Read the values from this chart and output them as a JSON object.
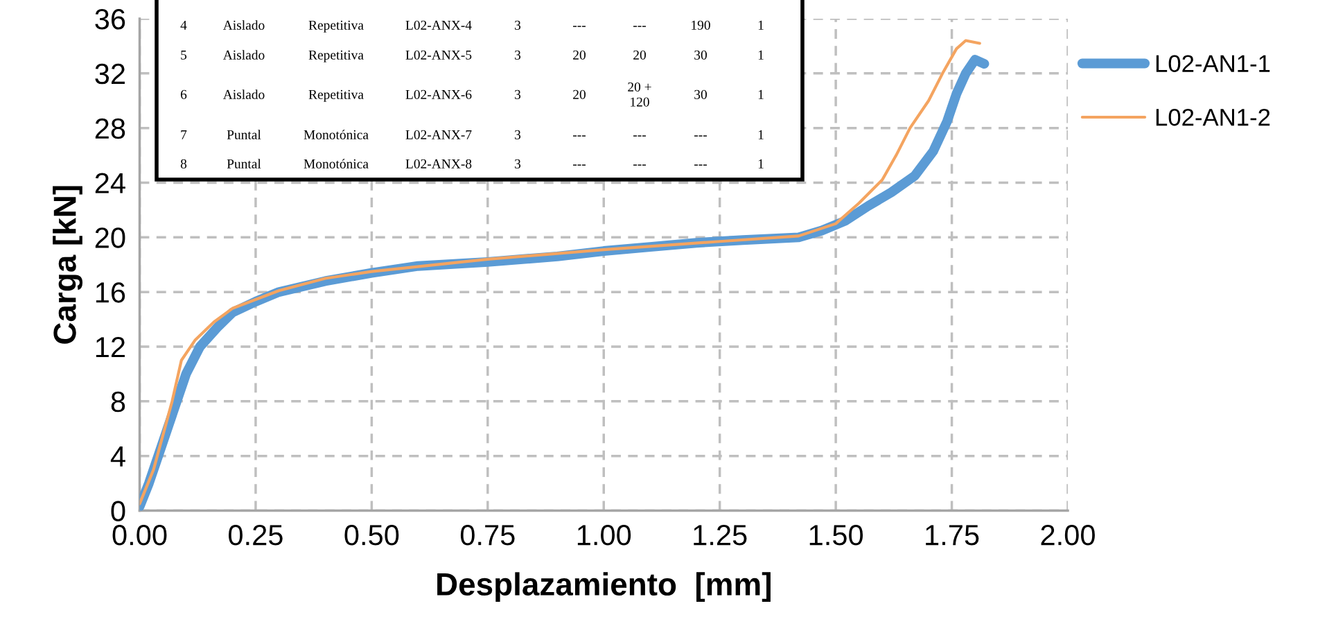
{
  "chart_data": {
    "type": "line",
    "xlabel": "Desplazamiento  [mm]",
    "ylabel": "Carga [kN]",
    "xlim": [
      0,
      2
    ],
    "xticks": [
      {
        "value": 0,
        "label": "0.00"
      },
      {
        "value": 0.25,
        "label": "0.25"
      },
      {
        "value": 0.5,
        "label": "0.50"
      },
      {
        "value": 0.75,
        "label": "0.75"
      },
      {
        "value": 1,
        "label": "1.00"
      },
      {
        "value": 1.25,
        "label": "1.25"
      },
      {
        "value": 1.5,
        "label": "1.50"
      },
      {
        "value": 1.75,
        "label": "1.75"
      },
      {
        "value": 2,
        "label": "2.00"
      }
    ],
    "ylim": [
      0,
      36
    ],
    "yticks": [
      0,
      4,
      8,
      12,
      16,
      20,
      24,
      28,
      32,
      36
    ],
    "grid": true,
    "legend": "right",
    "line_style": "solid",
    "marker": "none",
    "series": [
      {
        "name": "L02-AN1-1",
        "color": "#5b9bd5",
        "x": [
          0,
          0.02,
          0.04,
          0.06,
          0.08,
          0.1,
          0.13,
          0.17,
          0.2,
          0.25,
          0.3,
          0.4,
          0.5,
          0.6,
          0.75,
          0.9,
          1.0,
          1.1,
          1.2,
          1.3,
          1.42,
          1.47,
          1.52,
          1.57,
          1.62,
          1.67,
          1.71,
          1.74,
          1.76,
          1.78,
          1.8,
          1.82
        ],
        "values": [
          0.3,
          2,
          4,
          6,
          8,
          10,
          12,
          13.5,
          14.5,
          15.3,
          16,
          16.8,
          17.4,
          17.9,
          18.2,
          18.6,
          19,
          19.3,
          19.6,
          19.8,
          20,
          20.5,
          21.2,
          22.3,
          23.3,
          24.5,
          26.3,
          28.5,
          30.5,
          32,
          33,
          32.7
        ]
      },
      {
        "name": "L02-AN1-2",
        "color": "#f4a460",
        "x": [
          0,
          0.03,
          0.05,
          0.07,
          0.09,
          0.12,
          0.16,
          0.2,
          0.3,
          0.4,
          0.5,
          0.75,
          1.0,
          1.25,
          1.42,
          1.5,
          1.55,
          1.6,
          1.63,
          1.66,
          1.7,
          1.73,
          1.76,
          1.78,
          1.81
        ],
        "values": [
          0.5,
          3,
          5.5,
          8,
          11,
          12.5,
          13.8,
          14.8,
          16.1,
          17,
          17.5,
          18.4,
          19.1,
          19.7,
          20.1,
          21,
          22.5,
          24.2,
          26,
          28,
          30,
          32,
          33.8,
          34.4,
          34.2
        ]
      }
    ],
    "annotations": [
      "4",
      "Aislado",
      "Repetitiva",
      "L02-ANX-4",
      "3",
      "---",
      "---",
      "190",
      "1",
      "5",
      "Aislado",
      "Repetitiva",
      "L02-ANX-5",
      "3",
      "20",
      "20",
      "30",
      "1",
      "6",
      "Aislado",
      "Repetitiva",
      "L02-ANX-6",
      "3",
      "20",
      "20 +\n120",
      "30",
      "1",
      "7",
      "Puntal",
      "Monotónica",
      "L02-ANX-7",
      "3",
      "---",
      "---",
      "---",
      "1",
      "8",
      "Puntal",
      "Monotónica",
      "L02-ANX-8",
      "3",
      "---",
      "---",
      "---",
      "1"
    ]
  }
}
